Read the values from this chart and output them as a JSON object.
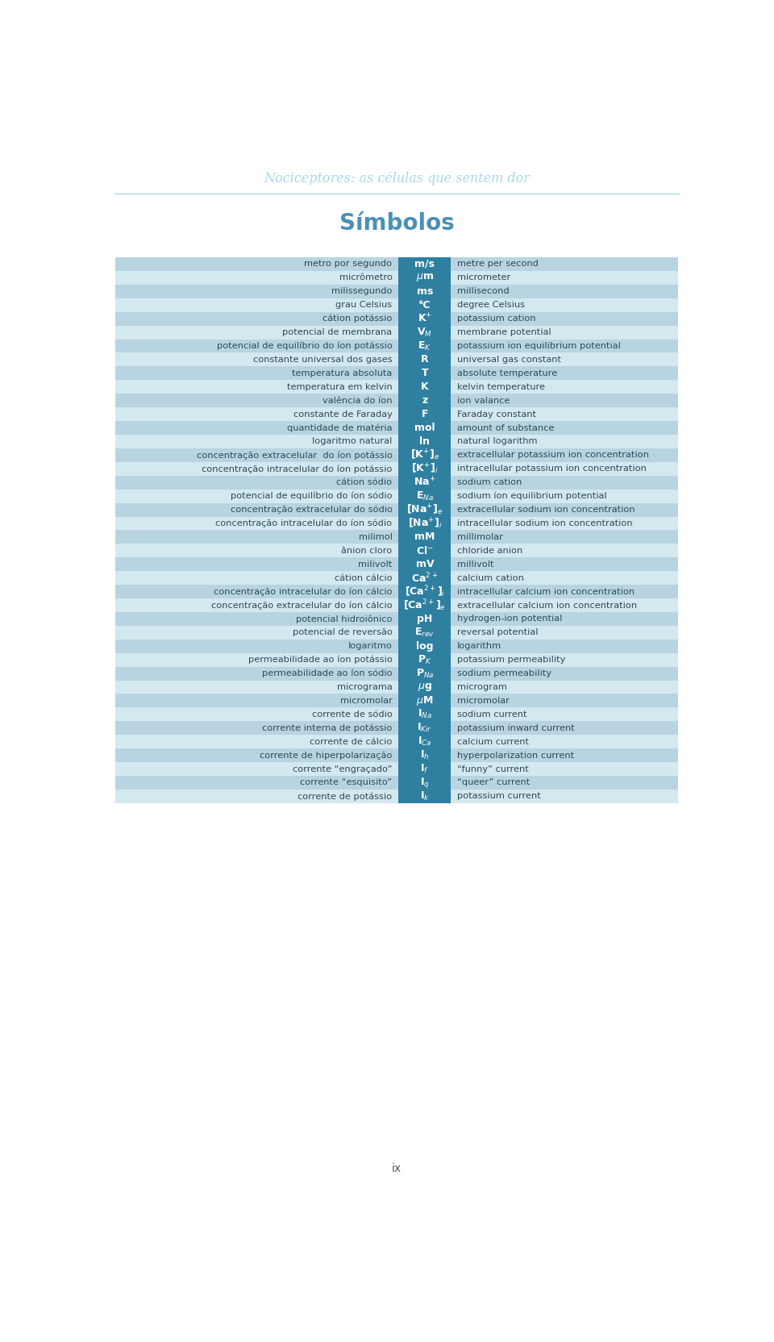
{
  "title_italic": "Nociceptores: as células que sentem dor",
  "title_main": "Símbolos",
  "title_italic_color": "#a8d8e8",
  "title_main_color": "#4a90b8",
  "row_bg_light": "#b8d4e0",
  "row_bg_lighter": "#d4e8f0",
  "symbol_bg": "#2e7fa0",
  "symbol_text_color": "#ffffff",
  "left_text_color": "#2c4a5a",
  "right_text_color": "#2c4a5a",
  "rows": [
    [
      "metro por segundo",
      "m/s",
      "metre per second"
    ],
    [
      "micrômetro",
      "$\\mu$m",
      "micrometer"
    ],
    [
      "milissegundo",
      "ms",
      "millisecond"
    ],
    [
      "grau Celsius",
      "°C",
      "degree Celsius"
    ],
    [
      "cátion potássio",
      "K$^{+}$",
      "potassium cation"
    ],
    [
      "potencial de membrana",
      "V$_{M}$",
      "membrane potential"
    ],
    [
      "potencial de equilíbrio do íon potássio",
      "E$_{K}$",
      "potassium ion equilibrium potential"
    ],
    [
      "constante universal dos gases",
      "R",
      "universal gas constant"
    ],
    [
      "temperatura absoluta",
      "T",
      "absolute temperature"
    ],
    [
      "temperatura em kelvin",
      "K",
      "kelvin temperature"
    ],
    [
      "valência do íon",
      "z",
      "ion valance"
    ],
    [
      "constante de Faraday",
      "F",
      "Faraday constant"
    ],
    [
      "quantidade de matéria",
      "mol",
      "amount of substance"
    ],
    [
      "logaritmo natural",
      "ln",
      "natural logarithm"
    ],
    [
      "concentração extracelular  do íon potássio",
      "[K$^{+}$]$_{e}$",
      "extracellular potassium ion concentration"
    ],
    [
      "concentração intracelular do íon potássio",
      "[K$^{+}$]$_{i}$",
      "intracellular potassium ion concentration"
    ],
    [
      "cátion sódio",
      "Na$^{+}$",
      "sodium cation"
    ],
    [
      "potencial de equilíbrio do íon sódio",
      "E$_{Na}$",
      "sodium íon equilibrium potential"
    ],
    [
      "concentração extracelular do sódio",
      "[Na$^{+}$]$_{e}$",
      "extracellular sodium ion concentration"
    ],
    [
      "concentração intracelular do íon sódio",
      "[Na$^{+}$]$_{i}$",
      "intracellular sodium ion concentration"
    ],
    [
      "milimol",
      "mM",
      "millimolar"
    ],
    [
      "ânion cloro",
      "Cl$^{-}$",
      "chloride anion"
    ],
    [
      "milivolt",
      "mV",
      "millivolt"
    ],
    [
      "cátion cálcio",
      "Ca$^{2+}$",
      "calcium cation"
    ],
    [
      "concentração intracelular do íon cálcio",
      "[Ca$^{2+}$]$_{i}$",
      "intracellular calcium ion concentration"
    ],
    [
      "concentração extracelular do íon cálcio",
      "[Ca$^{2+}$]$_{e}$",
      "extracellular calcium ion concentration"
    ],
    [
      "potencial hidroiônico",
      "pH",
      "hydrogen-ion potential"
    ],
    [
      "potencial de reversão",
      "E$_{rev}$",
      "reversal potential"
    ],
    [
      "logaritmo",
      "log",
      "logarithm"
    ],
    [
      "permeabilidade ao íon potássio",
      "P$_{K}$",
      "potassium permeability"
    ],
    [
      "permeabilidade ao íon sódio",
      "P$_{Na}$",
      "sodium permeability"
    ],
    [
      "micrograma",
      "$\\mu$g",
      "microgram"
    ],
    [
      "micromolar",
      "$\\mu$M",
      "micromolar"
    ],
    [
      "corrente de sódio",
      "I$_{Na}$",
      "sodium current"
    ],
    [
      "corrente interna de potássio",
      "I$_{Kir}$",
      "potassium inward current"
    ],
    [
      "corrente de cálcio",
      "I$_{Ca}$",
      "calcium current"
    ],
    [
      "corrente de hiperpolarização",
      "I$_{h}$",
      "hyperpolarization current"
    ],
    [
      "corrente “engraçado”",
      "I$_{f}$",
      "“funny” current"
    ],
    [
      "corrente “esquisito”",
      "I$_{q}$",
      "“queer” current"
    ],
    [
      "corrente de potássio",
      "I$_{k}$",
      "potassium current"
    ]
  ]
}
